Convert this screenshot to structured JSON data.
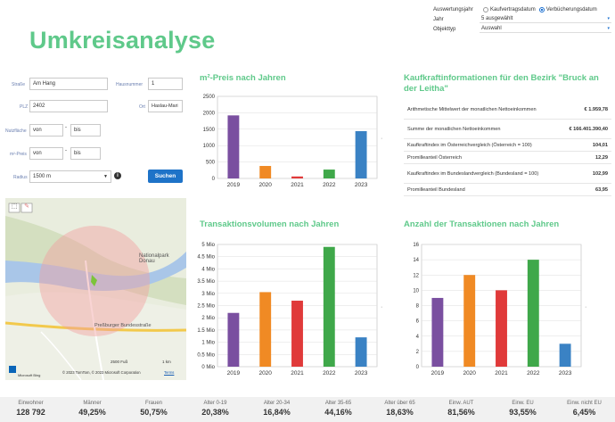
{
  "page_title": "Umkreisanalyse",
  "controls": {
    "auswertungsjahr_label": "Auswertungsjahr",
    "radio1": "Kaufvertragsdatum",
    "radio2": "Verbücherungsdatum",
    "jahr_label": "Jahr",
    "jahr_value": "5 ausgewählt",
    "objekttyp_label": "Objekttyp",
    "objekttyp_value": "Auswahl"
  },
  "form": {
    "strasse_label": "Straße",
    "strasse_value": "Am Hang",
    "hausnummer_label": "Hausnummer",
    "hausnummer_value": "1",
    "plz_label": "PLZ",
    "plz_value": "2402",
    "ort_label": "Ort",
    "ort_value": "Haslau-Mari",
    "nutzflaeche_label": "Nutzfläche",
    "nf_von": "von",
    "nf_bis": "bis",
    "m2preis_label": "m²-Preis",
    "mp_von": "von",
    "mp_bis": "bis",
    "radius_label": "Radius",
    "radius_value": "1500 m",
    "search_button": "Suchen"
  },
  "map": {
    "np_label": "Nationalpark Donau",
    "road_label": "Preßburger Bundesstraße",
    "attribution": "© 2023 TomTom, © 2023 Microsoft Corporation",
    "terms": "Terms",
    "scale1": "2500 Fuß",
    "scale2": "1 km",
    "brand": "Microsoft Bing"
  },
  "sections": {
    "m2": "m²-Preis nach Jahren",
    "kk": "Kaufkraftinformationen für den Bezirk \"Bruck an der Leitha\"",
    "tv": "Transaktionsvolumen nach Jahren",
    "at": "Anzahl der Transaktionen nach Jahren"
  },
  "kaufkraft": [
    {
      "label": "Arithmetische Mittelwert der monatlichen Nettoeinkommen",
      "value": "€ 1.959,78"
    },
    {
      "label": "Summe der monatlichen Nettoeinkommen",
      "value": "€ 166.401.390,40"
    },
    {
      "label": "Kaufkraftindex im Österreichvergleich (Österreich = 100)",
      "value": "104,01"
    },
    {
      "label": "Promilleanteil Österreich",
      "value": "12,29"
    },
    {
      "label": "Kaufkraftindex im Bundeslandvergleich (Bundesland = 100)",
      "value": "102,99"
    },
    {
      "label": "Promilleanteil Bundesland",
      "value": "63,95"
    }
  ],
  "colors": [
    "#7a4fa0",
    "#f08a24",
    "#e03a3a",
    "#3fa84a",
    "#3a82c4"
  ],
  "chart_data": [
    {
      "type": "bar",
      "title": "m²-Preis nach Jahren",
      "categories": [
        "2019",
        "2020",
        "2021",
        "2022",
        "2023"
      ],
      "values": [
        1920,
        380,
        60,
        270,
        1440
      ],
      "ylim": [
        0,
        2500
      ],
      "yticks": [
        "0",
        "500",
        "1000",
        "1500",
        "2000",
        "2500"
      ]
    },
    {
      "type": "bar",
      "title": "Transaktionsvolumen nach Jahren",
      "categories": [
        "2019",
        "2020",
        "2021",
        "2022",
        "2023"
      ],
      "values": [
        2.2,
        3.05,
        2.7,
        4.9,
        1.2
      ],
      "ylim": [
        0,
        5
      ],
      "yticks": [
        "0 Mio",
        "0.5 Mio",
        "1 Mio",
        "1.5 Mio",
        "2 Mio",
        "2.5 Mio",
        "3 Mio",
        "3.5 Mio",
        "4 Mio",
        "4.5 Mio",
        "5 Mio"
      ]
    },
    {
      "type": "bar",
      "title": "Anzahl der Transaktionen nach Jahren",
      "categories": [
        "2019",
        "2020",
        "2021",
        "2022",
        "2023"
      ],
      "values": [
        9,
        12,
        10,
        14,
        3
      ],
      "ylim": [
        0,
        16
      ],
      "yticks": [
        "0",
        "2",
        "4",
        "6",
        "8",
        "10",
        "12",
        "14",
        "16"
      ]
    }
  ],
  "stats": [
    {
      "label": "Einwohner",
      "value": "128 792"
    },
    {
      "label": "Männer",
      "value": "49,25%"
    },
    {
      "label": "Frauen",
      "value": "50,75%"
    },
    {
      "label": "Alter 0-19",
      "value": "20,38%"
    },
    {
      "label": "Alter 20-34",
      "value": "16,84%"
    },
    {
      "label": "Alter 35-65",
      "value": "44,16%"
    },
    {
      "label": "Alter über 65",
      "value": "18,63%"
    },
    {
      "label": "Einw. AUT",
      "value": "81,56%"
    },
    {
      "label": "Einw. EU",
      "value": "93,55%"
    },
    {
      "label": "Einw. nicht EU",
      "value": "6,45%"
    }
  ]
}
